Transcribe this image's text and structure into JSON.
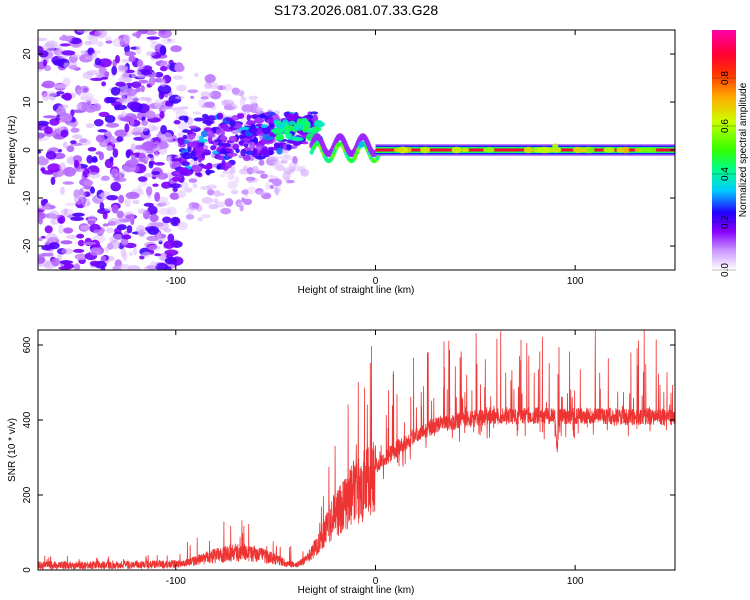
{
  "title": "S173.2026.081.07.33.G28",
  "chart_data": [
    {
      "type": "heatmap",
      "name": "spectrogram",
      "xlabel": "Height of straight line (km)",
      "ylabel": "Frequency (Hz)",
      "xlim": [
        -169,
        150
      ],
      "ylim": [
        -25,
        25
      ],
      "xticks": [
        -100,
        0,
        100
      ],
      "yticks": [
        -20,
        -10,
        0,
        10,
        20
      ],
      "colorbar": {
        "label": "Normalized spectral amplitude",
        "range": [
          0,
          1
        ],
        "ticks": [
          0.0,
          0.2,
          0.4,
          0.6,
          0.8
        ],
        "colormap": [
          "#ffffff",
          "#cc99ff",
          "#8800ff",
          "#2200ff",
          "#00ccff",
          "#00ff88",
          "#33ff00",
          "#ccff00",
          "#ffaa00",
          "#ff3300",
          "#ff0033",
          "#ff00aa"
        ]
      },
      "features": [
        {
          "x_range": [
            -169,
            -100
          ],
          "freq_range": [
            -25,
            25
          ],
          "amplitude": 0.1,
          "description": "scattered noise"
        },
        {
          "x_range": [
            -100,
            -30
          ],
          "freq_range": [
            -8,
            10
          ],
          "amplitude": 0.25,
          "description": "emerging signal"
        },
        {
          "x_range": [
            -50,
            -30
          ],
          "freq_range": [
            0,
            6
          ],
          "amplitude": 0.45,
          "description": "rising tone"
        },
        {
          "x_range": [
            -30,
            0
          ],
          "freq_range": [
            -2,
            2
          ],
          "amplitude": 0.55,
          "description": "oscillating tone"
        },
        {
          "x_range": [
            0,
            150
          ],
          "freq_range": [
            -1,
            1
          ],
          "amplitude": 0.9,
          "description": "steady carrier near 0 Hz"
        }
      ]
    },
    {
      "type": "line",
      "name": "snr",
      "xlabel": "Height of straight line (km)",
      "ylabel": "SNR (10 * v/v)",
      "xlim": [
        -169,
        150
      ],
      "ylim": [
        0,
        640
      ],
      "xticks": [
        -100,
        0,
        100
      ],
      "yticks": [
        0,
        200,
        400,
        600
      ],
      "color": "#ee3333",
      "envelope_x": [
        -169,
        -100,
        -95,
        -80,
        -70,
        -60,
        -50,
        -45,
        -40,
        -35,
        -30,
        -25,
        -20,
        -15,
        -10,
        -5,
        0,
        5,
        10,
        15,
        20,
        25,
        30,
        40,
        50,
        60,
        70,
        80,
        90,
        100,
        110,
        120,
        130,
        140,
        150
      ],
      "envelope_y": [
        12,
        15,
        22,
        45,
        55,
        50,
        35,
        22,
        15,
        30,
        70,
        120,
        170,
        210,
        240,
        260,
        280,
        300,
        320,
        340,
        360,
        375,
        385,
        395,
        405,
        410,
        410,
        412,
        410,
        410,
        412,
        410,
        408,
        410,
        405
      ]
    }
  ]
}
